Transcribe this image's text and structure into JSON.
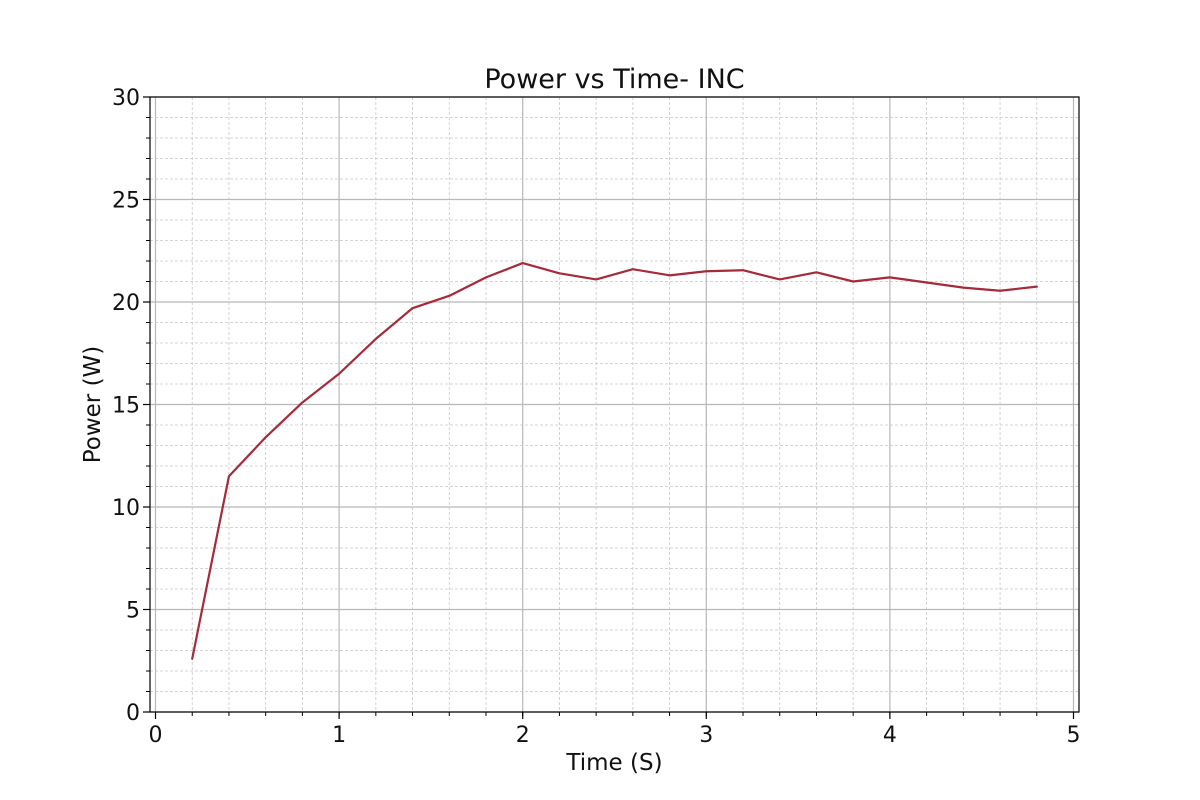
{
  "chart_data": {
    "type": "line",
    "title": "Power vs Time- INC",
    "xlabel": "Time (S)",
    "ylabel": "Power (W)",
    "xlim": [
      -0.03,
      5.03
    ],
    "ylim": [
      0,
      30
    ],
    "xticks": [
      0,
      1,
      2,
      3,
      4,
      5
    ],
    "yticks": [
      0,
      5,
      10,
      15,
      20,
      25,
      30
    ],
    "x_minor_step": 0.2,
    "y_minor_step": 1,
    "grid": true,
    "series": [
      {
        "color": "#a52a3a",
        "x": [
          0.2,
          0.4,
          0.6,
          0.8,
          1.0,
          1.2,
          1.4,
          1.6,
          1.8,
          2.0,
          2.2,
          2.4,
          2.6,
          2.8,
          3.0,
          3.2,
          3.4,
          3.6,
          3.8,
          4.0,
          4.2,
          4.4,
          4.6,
          4.8
        ],
        "y": [
          2.6,
          11.5,
          13.4,
          15.1,
          16.5,
          18.2,
          19.7,
          20.3,
          21.2,
          21.9,
          21.4,
          21.1,
          21.6,
          21.3,
          21.5,
          21.55,
          21.1,
          21.45,
          21.0,
          21.2,
          20.95,
          20.7,
          20.55,
          20.75
        ]
      }
    ]
  }
}
